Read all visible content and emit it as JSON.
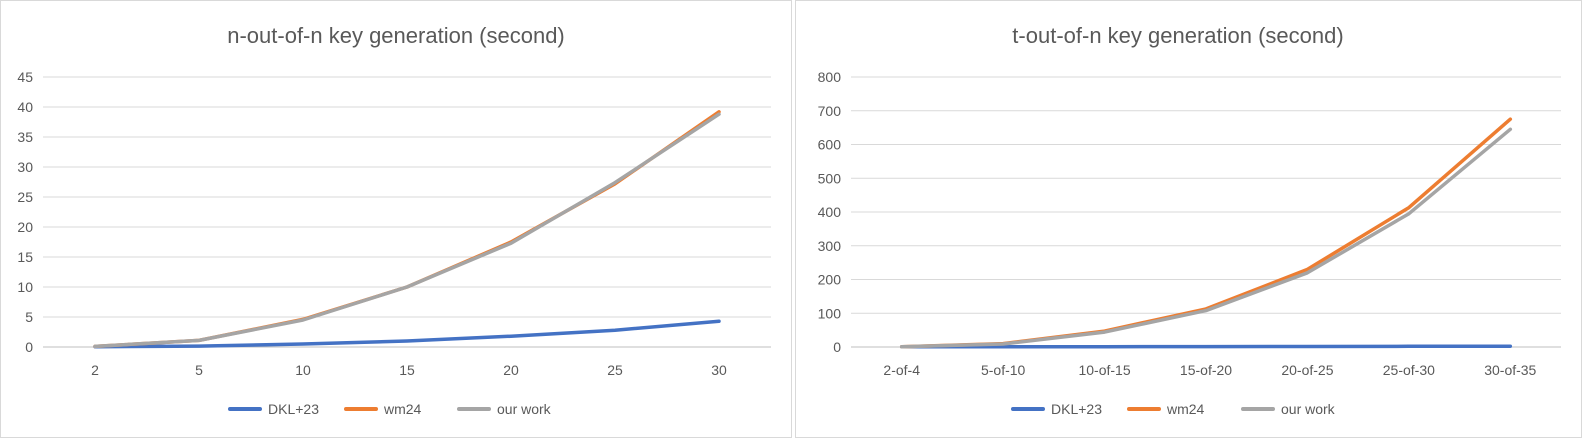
{
  "colors": {
    "DKL+23": "#4472c4",
    "wm24": "#ed7d31",
    "our work": "#a5a5a5"
  },
  "chart_data": [
    {
      "type": "line",
      "title": "n-out-of-n key generation (second)",
      "xlabel": "",
      "ylabel": "",
      "categories": [
        "2",
        "5",
        "10",
        "15",
        "20",
        "25",
        "30"
      ],
      "ylim": [
        0,
        45
      ],
      "yticks": [
        0,
        5,
        10,
        15,
        20,
        25,
        30,
        35,
        40,
        45
      ],
      "grid": true,
      "legend": "bottom",
      "series": [
        {
          "name": "DKL+23",
          "values": [
            0.05,
            0.15,
            0.5,
            1.0,
            1.8,
            2.8,
            4.3
          ]
        },
        {
          "name": "wm24",
          "values": [
            0.1,
            1.1,
            4.6,
            10.0,
            17.5,
            27.2,
            39.2
          ]
        },
        {
          "name": "our work",
          "values": [
            0.1,
            1.1,
            4.5,
            10.0,
            17.3,
            27.4,
            38.8
          ]
        }
      ]
    },
    {
      "type": "line",
      "title": "t-out-of-n key generation (second)",
      "xlabel": "",
      "ylabel": "",
      "categories": [
        "2-of-4",
        "5-of-10",
        "10-of-15",
        "15-of-20",
        "20-of-25",
        "25-of-30",
        "30-of-35"
      ],
      "ylim": [
        0,
        800
      ],
      "yticks": [
        0,
        100,
        200,
        300,
        400,
        500,
        600,
        700,
        800
      ],
      "grid": true,
      "legend": "bottom",
      "series": [
        {
          "name": "DKL+23",
          "values": [
            0.5,
            0.8,
            1.0,
            1.3,
            1.6,
            2.0,
            2.5
          ]
        },
        {
          "name": "wm24",
          "values": [
            1,
            10,
            47,
            113,
            230,
            413,
            675
          ]
        },
        {
          "name": "our work",
          "values": [
            1,
            9,
            44,
            108,
            220,
            395,
            645
          ]
        }
      ]
    }
  ]
}
